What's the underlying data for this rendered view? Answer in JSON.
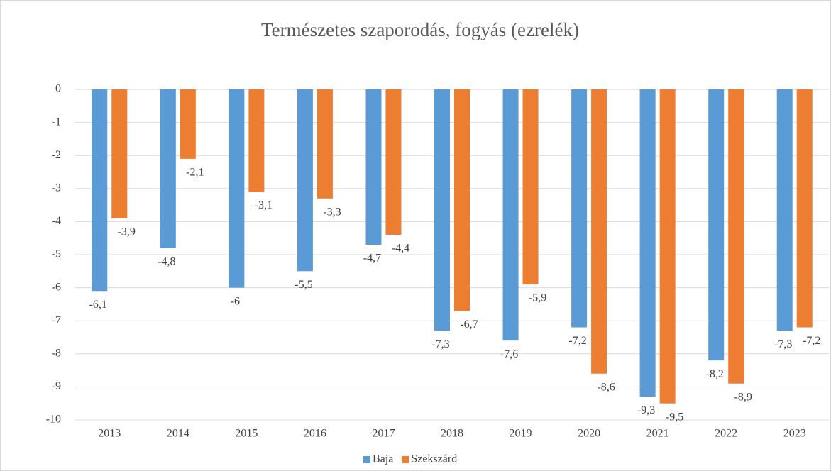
{
  "chart_data": {
    "type": "bar",
    "title": "Természetes szaporodás, fogyás (ezrelék)",
    "categories": [
      "2013",
      "2014",
      "2015",
      "2016",
      "2017",
      "2018",
      "2019",
      "2020",
      "2021",
      "2022",
      "2023"
    ],
    "series": [
      {
        "name": "Baja",
        "color": "#5b9bd5",
        "values": [
          -6.1,
          -4.8,
          -6,
          -5.5,
          -4.7,
          -7.3,
          -7.6,
          -7.2,
          -9.3,
          -8.2,
          -7.3
        ],
        "value_labels": [
          "-6,1",
          "-4,8",
          "-6",
          "-5,5",
          "-4,7",
          "-7,3",
          "-7,6",
          "-7,2",
          "-9,3",
          "-8,2",
          "-7,3"
        ]
      },
      {
        "name": "Szekszárd",
        "color": "#ed7d31",
        "values": [
          -3.9,
          -2.1,
          -3.1,
          -3.3,
          -4.4,
          -6.7,
          -5.9,
          -8.6,
          -9.5,
          -8.9,
          -7.2
        ],
        "value_labels": [
          "-3,9",
          "-2,1",
          "-3,1",
          "-3,3",
          "-4,4",
          "-6,7",
          "-5,9",
          "-8,6",
          "-9,5",
          "-8,9",
          "-7,2"
        ]
      }
    ],
    "ylim": [
      -10,
      0
    ],
    "yticks": [
      0,
      -1,
      -2,
      -3,
      -4,
      -5,
      -6,
      -7,
      -8,
      -9,
      -10
    ],
    "grid": true,
    "legend": "bottom"
  }
}
